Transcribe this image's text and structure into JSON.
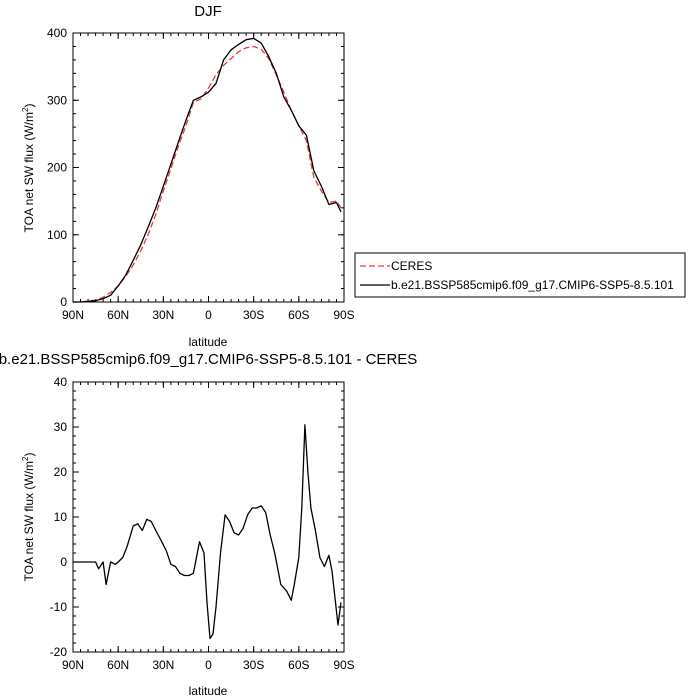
{
  "chart_data": [
    {
      "type": "line",
      "title": "DJF",
      "xlabel": "latitude",
      "ylabel": "TOA net SW flux (W/m",
      "ylabel_sup": "2",
      "ylabel_close": ")",
      "xlim": [
        90,
        -90
      ],
      "ylim": [
        0,
        400
      ],
      "xticks": [
        90,
        60,
        30,
        0,
        -30,
        -60,
        -90
      ],
      "xtick_labels": [
        "90N",
        "60N",
        "30N",
        "0",
        "30S",
        "60S",
        "90S"
      ],
      "yticks": [
        0,
        100,
        200,
        300,
        400
      ],
      "ytick_labels": [
        "0",
        "100",
        "200",
        "300",
        "400"
      ],
      "legend": "right",
      "series": [
        {
          "name": "CERES",
          "color": "#e8373f",
          "dashed": true,
          "x": [
            90,
            85,
            80,
            75,
            70,
            65,
            60,
            55,
            50,
            45,
            40,
            35,
            30,
            25,
            20,
            15,
            10,
            5,
            0,
            -5,
            -10,
            -15,
            -20,
            -25,
            -30,
            -35,
            -40,
            -45,
            -50,
            -55,
            -60,
            -65,
            -70,
            -75,
            -80,
            -85,
            -88
          ],
          "y": [
            0,
            0,
            1,
            3,
            7,
            14,
            24,
            38,
            55,
            76,
            101,
            130,
            165,
            198,
            232,
            262,
            297,
            302,
            318,
            338,
            352,
            362,
            372,
            378,
            380,
            376,
            362,
            338,
            312,
            285,
            262,
            240,
            185,
            165,
            148,
            150,
            140
          ]
        },
        {
          "name": "b.e21.BSSP585cmip6.f09_g17.CMIP6-SSP5-8.5.101",
          "color": "#000000",
          "dashed": false,
          "x": [
            90,
            85,
            80,
            75,
            70,
            65,
            60,
            55,
            50,
            45,
            40,
            35,
            30,
            25,
            20,
            15,
            10,
            5,
            0,
            -5,
            -10,
            -15,
            -20,
            -25,
            -30,
            -35,
            -40,
            -45,
            -50,
            -55,
            -60,
            -65,
            -70,
            -75,
            -80,
            -85,
            -88
          ],
          "y": [
            0,
            0,
            1,
            2,
            5,
            10,
            24,
            40,
            62,
            85,
            112,
            140,
            172,
            205,
            238,
            270,
            300,
            305,
            312,
            325,
            360,
            375,
            383,
            390,
            392,
            385,
            365,
            340,
            305,
            285,
            262,
            248,
            195,
            172,
            145,
            148,
            134
          ]
        }
      ]
    },
    {
      "type": "line",
      "title": "b.e21.BSSP585cmip6.f09_g17.CMIP6-SSP5-8.5.101 - CERES",
      "xlabel": "latitude",
      "ylabel": "TOA net SW flux (W/m",
      "ylabel_sup": "2",
      "ylabel_close": ")",
      "xlim": [
        90,
        -90
      ],
      "ylim": [
        -20,
        40
      ],
      "xticks": [
        90,
        60,
        30,
        0,
        -30,
        -60,
        -90
      ],
      "xtick_labels": [
        "90N",
        "60N",
        "30N",
        "0",
        "30S",
        "60S",
        "90S"
      ],
      "yticks": [
        -20,
        -10,
        0,
        10,
        20,
        30,
        40
      ],
      "ytick_labels": [
        "-20",
        "-10",
        "0",
        "10",
        "20",
        "30",
        "40"
      ],
      "series": [
        {
          "color": "#000000",
          "dashed": false,
          "x": [
            90,
            85,
            78,
            75,
            73,
            70,
            68,
            65,
            62,
            60,
            57,
            54,
            50,
            47,
            44,
            41,
            38,
            35,
            31,
            28,
            25,
            22,
            19,
            16,
            13,
            10,
            6,
            3,
            1,
            -1,
            -3,
            -5,
            -8,
            -11,
            -14,
            -17,
            -20,
            -23,
            -26,
            -29,
            -32,
            -35,
            -38,
            -41,
            -44,
            -48,
            -52,
            -55,
            -57,
            -60,
            -62,
            -64,
            -66,
            -68,
            -71,
            -74,
            -77,
            -80,
            -82,
            -84,
            -86,
            -88
          ],
          "y": [
            0,
            0,
            0,
            0,
            -1.5,
            0,
            -5,
            0,
            -0.5,
            0,
            1,
            3.5,
            8,
            8.5,
            7,
            9.5,
            9,
            7,
            4.5,
            2.5,
            -0.5,
            -1,
            -2.5,
            -3,
            -3,
            -2.5,
            4.5,
            2,
            -9,
            -17,
            -16,
            -10,
            2,
            10.5,
            9,
            6.5,
            6,
            7.5,
            10.5,
            12,
            12,
            12.5,
            11,
            6,
            2,
            -5,
            -6.5,
            -8.5,
            -5,
            1,
            12,
            30.5,
            20,
            12,
            7,
            1,
            -1,
            1.5,
            -2,
            -8,
            -14,
            -9
          ]
        }
      ]
    }
  ]
}
